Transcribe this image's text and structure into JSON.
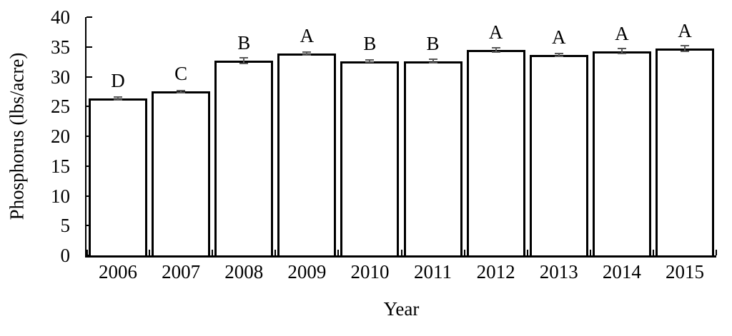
{
  "figure": {
    "background": "#ffffff",
    "text_color": "#000000"
  },
  "chart_data": {
    "type": "bar",
    "title": "",
    "xlabel": "Year",
    "ylabel": "Phosphorus (lbs/acre)",
    "categories": [
      "2006",
      "2007",
      "2008",
      "2009",
      "2010",
      "2011",
      "2012",
      "2013",
      "2014",
      "2015"
    ],
    "values": [
      26.3,
      27.5,
      32.7,
      33.9,
      32.6,
      32.6,
      34.5,
      33.7,
      34.3,
      34.7
    ],
    "error_bars": [
      0.25,
      0.15,
      0.5,
      0.25,
      0.2,
      0.3,
      0.4,
      0.25,
      0.4,
      0.45
    ],
    "letter_labels": [
      "D",
      "C",
      "B",
      "A",
      "B",
      "B",
      "A",
      "A",
      "A",
      "A"
    ],
    "ylim": [
      0,
      40
    ],
    "yticks": [
      0,
      5,
      10,
      15,
      20,
      25,
      30,
      35,
      40
    ],
    "grid": false,
    "legend_position": "none",
    "colors": {
      "bar_fill": "#ffffff",
      "bar_border": "#000000",
      "axis": "#000000",
      "error_bar": "#595959",
      "text": "#000000"
    }
  }
}
